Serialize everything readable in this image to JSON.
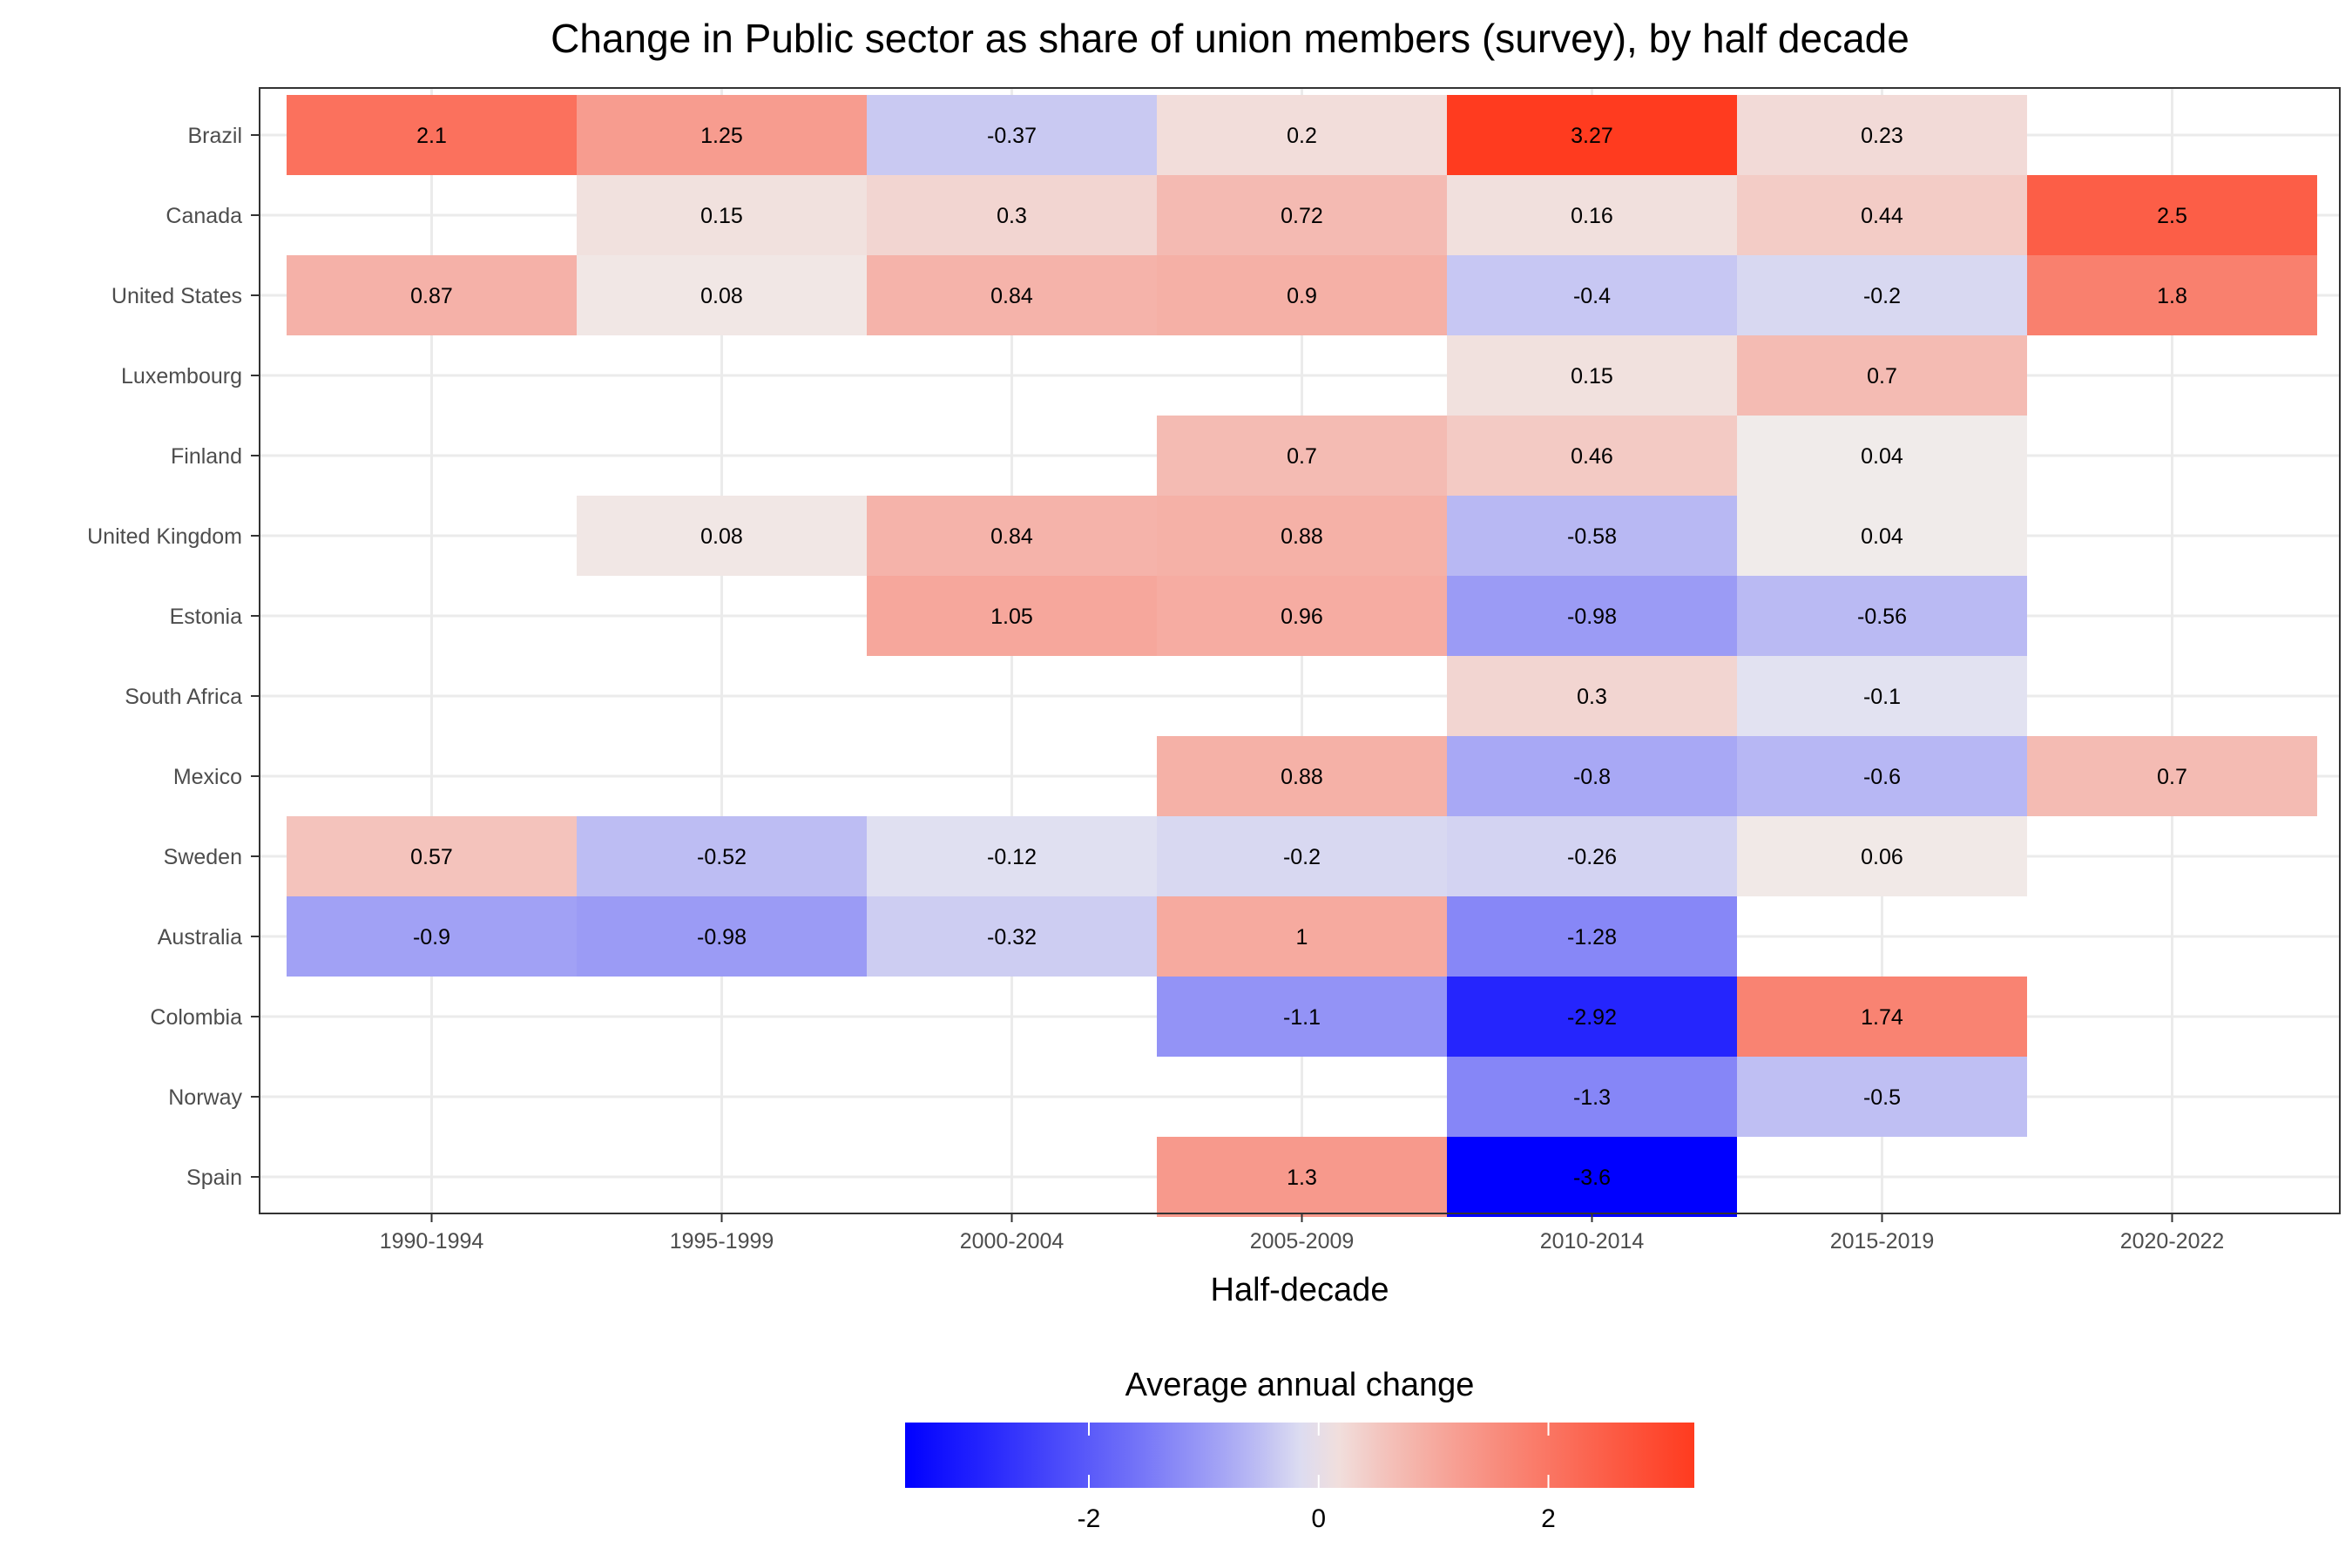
{
  "chart_data": {
    "type": "heatmap",
    "title": "Change in Public sector as share of union members (survey), by half decade",
    "xlabel": "Half-decade",
    "ylabel": "",
    "x": [
      "1990-1994",
      "1995-1999",
      "2000-2004",
      "2005-2009",
      "2010-2014",
      "2015-2019",
      "2020-2022"
    ],
    "y": [
      "Brazil",
      "Canada",
      "United States",
      "Luxembourg",
      "Finland",
      "United Kingdom",
      "Estonia",
      "South Africa",
      "Mexico",
      "Sweden",
      "Australia",
      "Colombia",
      "Norway",
      "Spain"
    ],
    "values": [
      [
        2.1,
        1.25,
        -0.37,
        0.2,
        3.27,
        0.23,
        null
      ],
      [
        null,
        0.15,
        0.3,
        0.72,
        0.16,
        0.44,
        2.5
      ],
      [
        0.87,
        0.08,
        0.84,
        0.9,
        -0.4,
        -0.2,
        1.8
      ],
      [
        null,
        null,
        null,
        null,
        0.15,
        0.7,
        null
      ],
      [
        null,
        null,
        null,
        0.7,
        0.46,
        0.04,
        null
      ],
      [
        null,
        0.08,
        0.84,
        0.88,
        -0.58,
        0.04,
        null
      ],
      [
        null,
        null,
        1.05,
        0.96,
        -0.98,
        -0.56,
        null
      ],
      [
        null,
        null,
        null,
        null,
        0.3,
        -0.1,
        null
      ],
      [
        null,
        null,
        null,
        0.88,
        -0.8,
        -0.6,
        0.7
      ],
      [
        0.57,
        -0.52,
        -0.12,
        -0.2,
        -0.26,
        0.06,
        null
      ],
      [
        -0.9,
        -0.98,
        -0.32,
        1,
        -1.28,
        null,
        null
      ],
      [
        null,
        null,
        null,
        -1.1,
        -2.92,
        1.74,
        null
      ],
      [
        null,
        null,
        null,
        null,
        -1.3,
        -0.5,
        null
      ],
      [
        null,
        null,
        null,
        1.3,
        -3.6,
        null,
        null
      ]
    ],
    "value_labels": [
      [
        "2.1",
        "1.25",
        "-0.37",
        "0.2",
        "3.27",
        "0.23",
        ""
      ],
      [
        "",
        "0.15",
        "0.3",
        "0.72",
        "0.16",
        "0.44",
        "2.5"
      ],
      [
        "0.87",
        "0.08",
        "0.84",
        "0.9",
        "-0.4",
        "-0.2",
        "1.8"
      ],
      [
        "",
        "",
        "",
        "",
        "0.15",
        "0.7",
        ""
      ],
      [
        "",
        "",
        "",
        "0.7",
        "0.46",
        "0.04",
        ""
      ],
      [
        "",
        "0.08",
        "0.84",
        "0.88",
        "-0.58",
        "0.04",
        ""
      ],
      [
        "",
        "",
        "1.05",
        "0.96",
        "-0.98",
        "-0.56",
        ""
      ],
      [
        "",
        "",
        "",
        "",
        "0.3",
        "-0.1",
        ""
      ],
      [
        "",
        "",
        "",
        "0.88",
        "-0.8",
        "-0.6",
        "0.7"
      ],
      [
        "0.57",
        "-0.52",
        "-0.12",
        "-0.2",
        "-0.26",
        "0.06",
        ""
      ],
      [
        "-0.9",
        "-0.98",
        "-0.32",
        "1",
        "-1.28",
        "",
        ""
      ],
      [
        "",
        "",
        "",
        "-1.1",
        "-2.92",
        "1.74",
        ""
      ],
      [
        "",
        "",
        "",
        "",
        "-1.3",
        "-0.5",
        ""
      ],
      [
        "",
        "",
        "",
        "1.3",
        "-3.6",
        "",
        ""
      ]
    ],
    "legend": {
      "title": "Average annual change",
      "placement": "bottom",
      "ticks": [
        -2,
        0,
        2
      ],
      "tick_labels": [
        "-2",
        "0",
        "2"
      ],
      "range": [
        -3.6,
        3.27
      ]
    },
    "colors": {
      "low": "#0000ff",
      "mid": "#f0f0f0",
      "high": "#ff3b1f",
      "grid": "#ebebeb",
      "panel_border": "#333333"
    },
    "grid": true
  }
}
